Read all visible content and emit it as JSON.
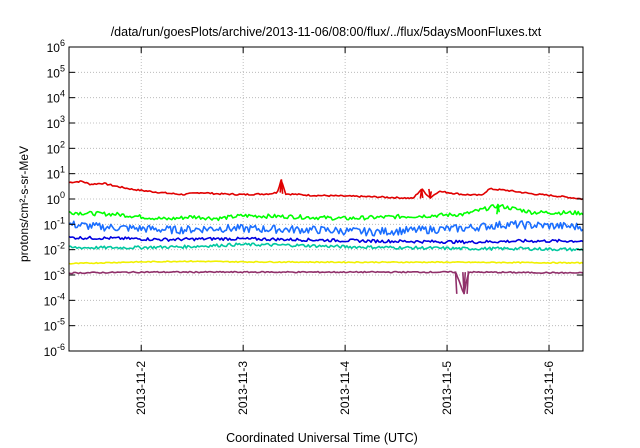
{
  "chart_data": {
    "type": "line",
    "title": "/data/run/goesPlots/archive/2013-11-06/08:00/flux/../flux/5daysMoonFluxes.txt",
    "xlabel": "Coordinated Universal Time (UTC)",
    "ylabel": "protons/cm²-s-sr-MeV",
    "yscale": "log",
    "ylim": [
      1e-06,
      1000000.0
    ],
    "xlim": [
      "2013-11-01T07:00",
      "2013-11-06T08:00"
    ],
    "y_ticks": [
      {
        "value": 1e-06,
        "base": "10",
        "exp": "-6"
      },
      {
        "value": 1e-05,
        "base": "10",
        "exp": "-5"
      },
      {
        "value": 0.0001,
        "base": "10",
        "exp": "-4"
      },
      {
        "value": 0.001,
        "base": "10",
        "exp": "-3"
      },
      {
        "value": 0.01,
        "base": "10",
        "exp": "-2"
      },
      {
        "value": 0.1,
        "base": "10",
        "exp": "-1"
      },
      {
        "value": 1,
        "base": "10",
        "exp": "0"
      },
      {
        "value": 10,
        "base": "10",
        "exp": "1"
      },
      {
        "value": 100,
        "base": "10",
        "exp": "2"
      },
      {
        "value": 1000,
        "base": "10",
        "exp": "3"
      },
      {
        "value": 10000,
        "base": "10",
        "exp": "4"
      },
      {
        "value": 100000,
        "base": "10",
        "exp": "5"
      },
      {
        "value": 1000000,
        "base": "10",
        "exp": "6"
      }
    ],
    "x_ticks": [
      {
        "value": "2013-11-02T00:00",
        "label": "2013-11-2"
      },
      {
        "value": "2013-11-03T00:00",
        "label": "2013-11-3"
      },
      {
        "value": "2013-11-04T00:00",
        "label": "2013-11-4"
      },
      {
        "value": "2013-11-05T00:00",
        "label": "2013-11-5"
      },
      {
        "value": "2013-11-06T00:00",
        "label": "2013-11-6"
      }
    ],
    "grid": true,
    "series": [
      {
        "color": "#e00000",
        "values": [
          {
            "x": "2013-11-01T07:00",
            "y": 4.5
          },
          {
            "x": "2013-11-01T10:00",
            "y": 5
          },
          {
            "x": "2013-11-01T12:00",
            "y": 3.8
          },
          {
            "x": "2013-11-01T15:00",
            "y": 4.2
          },
          {
            "x": "2013-11-01T18:00",
            "y": 3.2
          },
          {
            "x": "2013-11-01T22:00",
            "y": 2.4
          },
          {
            "x": "2013-11-02T02:00",
            "y": 2
          },
          {
            "x": "2013-11-02T06:00",
            "y": 1.7
          },
          {
            "x": "2013-11-02T10:00",
            "y": 1.5
          },
          {
            "x": "2013-11-02T14:00",
            "y": 1.8
          },
          {
            "x": "2013-11-02T18:00",
            "y": 1.6
          },
          {
            "x": "2013-11-03T00:00",
            "y": 1.5
          },
          {
            "x": "2013-11-03T06:00",
            "y": 1.6
          },
          {
            "x": "2013-11-03T08:00",
            "y": 1.8
          },
          {
            "x": "2013-11-03T09:00",
            "y": 6
          },
          {
            "x": "2013-11-03T10:00",
            "y": 1.6
          },
          {
            "x": "2013-11-03T16:00",
            "y": 1.4
          },
          {
            "x": "2013-11-04T00:00",
            "y": 1.3
          },
          {
            "x": "2013-11-04T08:00",
            "y": 1.2
          },
          {
            "x": "2013-11-04T14:00",
            "y": 1.1
          },
          {
            "x": "2013-11-04T20:00",
            "y": 1.1
          },
          {
            "x": "2013-11-04T16:00",
            "y": 1.05
          },
          {
            "x": "2013-11-04T18:00",
            "y": 2.5
          },
          {
            "x": "2013-11-04T22:00",
            "y": 2
          },
          {
            "x": "2013-11-05T04:00",
            "y": 1.5
          },
          {
            "x": "2013-11-05T08:00",
            "y": 1.4
          },
          {
            "x": "2013-11-05T10:00",
            "y": 2.5
          },
          {
            "x": "2013-11-05T14:00",
            "y": 2.2
          },
          {
            "x": "2013-11-05T20:00",
            "y": 1.6
          },
          {
            "x": "2013-11-06T02:00",
            "y": 1.3
          },
          {
            "x": "2013-11-06T08:00",
            "y": 1
          }
        ]
      },
      {
        "color": "#00ff00",
        "values": [
          {
            "x": "2013-11-01T07:00",
            "y": 0.3
          },
          {
            "x": "2013-11-01T12:00",
            "y": 0.27
          },
          {
            "x": "2013-11-01T18:00",
            "y": 0.25
          },
          {
            "x": "2013-11-02T00:00",
            "y": 0.2
          },
          {
            "x": "2013-11-02T06:00",
            "y": 0.16
          },
          {
            "x": "2013-11-02T12:00",
            "y": 0.2
          },
          {
            "x": "2013-11-02T18:00",
            "y": 0.17
          },
          {
            "x": "2013-11-03T00:00",
            "y": 0.22
          },
          {
            "x": "2013-11-03T12:00",
            "y": 0.2
          },
          {
            "x": "2013-11-04T00:00",
            "y": 0.17
          },
          {
            "x": "2013-11-04T12:00",
            "y": 0.2
          },
          {
            "x": "2013-11-04T20:00",
            "y": 0.22
          },
          {
            "x": "2013-11-05T04:00",
            "y": 0.25
          },
          {
            "x": "2013-11-05T12:00",
            "y": 0.55
          },
          {
            "x": "2013-11-05T20:00",
            "y": 0.3
          },
          {
            "x": "2013-11-06T08:00",
            "y": 0.28
          }
        ]
      },
      {
        "color": "#1a6eff",
        "values": [
          {
            "x": "2013-11-01T07:00",
            "y": 0.1
          },
          {
            "x": "2013-11-01T14:00",
            "y": 0.08
          },
          {
            "x": "2013-11-01T22:00",
            "y": 0.07
          },
          {
            "x": "2013-11-02T08:00",
            "y": 0.06
          },
          {
            "x": "2013-11-02T18:00",
            "y": 0.07
          },
          {
            "x": "2013-11-03T06:00",
            "y": 0.065
          },
          {
            "x": "2013-11-03T18:00",
            "y": 0.06
          },
          {
            "x": "2013-11-04T06:00",
            "y": 0.05
          },
          {
            "x": "2013-11-04T18:00",
            "y": 0.06
          },
          {
            "x": "2013-11-05T04:00",
            "y": 0.07
          },
          {
            "x": "2013-11-05T14:00",
            "y": 0.1
          },
          {
            "x": "2013-11-05T22:00",
            "y": 0.09
          },
          {
            "x": "2013-11-06T08:00",
            "y": 0.08
          }
        ]
      },
      {
        "color": "#0000e0",
        "values": [
          {
            "x": "2013-11-01T07:00",
            "y": 0.03
          },
          {
            "x": "2013-11-01T18:00",
            "y": 0.028
          },
          {
            "x": "2013-11-02T06:00",
            "y": 0.025
          },
          {
            "x": "2013-11-02T18:00",
            "y": 0.027
          },
          {
            "x": "2013-11-03T06:00",
            "y": 0.026
          },
          {
            "x": "2013-11-03T18:00",
            "y": 0.024
          },
          {
            "x": "2013-11-04T06:00",
            "y": 0.022
          },
          {
            "x": "2013-11-04T18:00",
            "y": 0.021
          },
          {
            "x": "2013-11-05T06:00",
            "y": 0.02
          },
          {
            "x": "2013-11-05T18:00",
            "y": 0.022
          },
          {
            "x": "2013-11-06T08:00",
            "y": 0.022
          }
        ]
      },
      {
        "color": "#00c8a0",
        "values": [
          {
            "x": "2013-11-01T07:00",
            "y": 0.012
          },
          {
            "x": "2013-11-01T20:00",
            "y": 0.012
          },
          {
            "x": "2013-11-02T10:00",
            "y": 0.013
          },
          {
            "x": "2013-11-02T23:00",
            "y": 0.016
          },
          {
            "x": "2013-11-03T12:00",
            "y": 0.015
          },
          {
            "x": "2013-11-04T00:00",
            "y": 0.013
          },
          {
            "x": "2013-11-04T14:00",
            "y": 0.012
          },
          {
            "x": "2013-11-05T04:00",
            "y": 0.011
          },
          {
            "x": "2013-11-05T18:00",
            "y": 0.011
          },
          {
            "x": "2013-11-06T08:00",
            "y": 0.01
          }
        ]
      },
      {
        "color": "#f0f000",
        "values": [
          {
            "x": "2013-11-01T07:00",
            "y": 0.0028
          },
          {
            "x": "2013-11-01T20:00",
            "y": 0.0032
          },
          {
            "x": "2013-11-02T10:00",
            "y": 0.0035
          },
          {
            "x": "2013-11-03T00:00",
            "y": 0.0033
          },
          {
            "x": "2013-11-04T00:00",
            "y": 0.0032
          },
          {
            "x": "2013-11-05T00:00",
            "y": 0.0032
          },
          {
            "x": "2013-11-06T08:00",
            "y": 0.003
          }
        ]
      },
      {
        "color": "#90306a",
        "values": [
          {
            "x": "2013-11-01T07:00",
            "y": 0.0012
          },
          {
            "x": "2013-11-02T00:00",
            "y": 0.0013
          },
          {
            "x": "2013-11-03T00:00",
            "y": 0.0013
          },
          {
            "x": "2013-11-04T00:00",
            "y": 0.0013
          },
          {
            "x": "2013-11-05T02:00",
            "y": 0.0013
          },
          {
            "x": "2013-11-05T04:00",
            "y": 0.00018
          },
          {
            "x": "2013-11-05T05:00",
            "y": 0.0013
          },
          {
            "x": "2013-11-06T08:00",
            "y": 0.0012
          }
        ]
      }
    ]
  }
}
